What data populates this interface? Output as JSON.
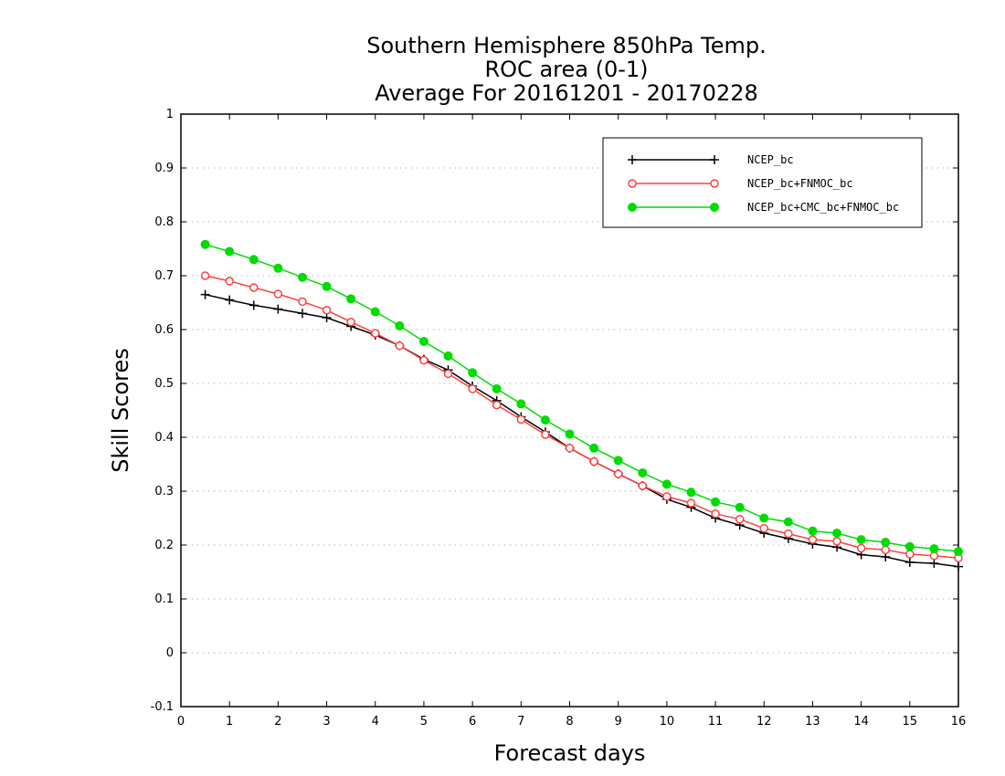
{
  "chart_data": {
    "type": "line",
    "title_lines": [
      "Southern Hemisphere 850hPa Temp.",
      "ROC area (0-1)",
      "Average For 20161201 - 20170228"
    ],
    "xlabel": "Forecast days",
    "ylabel": "Skill Scores",
    "xlim": [
      0,
      16
    ],
    "ylim": [
      -0.1,
      1
    ],
    "xticks": [
      0,
      1,
      2,
      3,
      4,
      5,
      6,
      7,
      8,
      9,
      10,
      11,
      12,
      13,
      14,
      15,
      16
    ],
    "yticks": [
      -0.1,
      0,
      0.1,
      0.2,
      0.3,
      0.4,
      0.5,
      0.6,
      0.7,
      0.8,
      0.9,
      1
    ],
    "ytick_labels": [
      "-0.1",
      "0",
      "0.1",
      "0.2",
      "0.3",
      "0.4",
      "0.5",
      "0.6",
      "0.7",
      "0.8",
      "0.9",
      "1"
    ],
    "grid": "horizontal-dotted",
    "legend_position": "top-right",
    "x": [
      0.5,
      1,
      1.5,
      2,
      2.5,
      3,
      3.5,
      4,
      4.5,
      5,
      5.5,
      6,
      6.5,
      7,
      7.5,
      8,
      8.5,
      9,
      9.5,
      10,
      10.5,
      11,
      11.5,
      12,
      12.5,
      13,
      13.5,
      14,
      14.5,
      15,
      15.5,
      16
    ],
    "series": [
      {
        "name": "NCEP_bc",
        "color": "#000000",
        "marker": "plus",
        "values": [
          0.665,
          0.655,
          0.645,
          0.638,
          0.63,
          0.622,
          0.606,
          0.59,
          0.57,
          0.545,
          0.525,
          0.495,
          0.468,
          0.438,
          0.41,
          0.38,
          0.355,
          0.332,
          0.31,
          0.285,
          0.27,
          0.25,
          0.237,
          0.222,
          0.212,
          0.202,
          0.196,
          0.182,
          0.178,
          0.168,
          0.166,
          0.16
        ]
      },
      {
        "name": "NCEP_bc+FNMOC_bc",
        "color": "#ff4040",
        "marker": "open-circle",
        "values": [
          0.7,
          0.69,
          0.678,
          0.666,
          0.652,
          0.636,
          0.614,
          0.593,
          0.57,
          0.543,
          0.518,
          0.49,
          0.46,
          0.433,
          0.405,
          0.38,
          0.355,
          0.332,
          0.31,
          0.29,
          0.278,
          0.258,
          0.248,
          0.231,
          0.221,
          0.21,
          0.207,
          0.194,
          0.191,
          0.183,
          0.18,
          0.176
        ]
      },
      {
        "name": "NCEP_bc+CMC_bc+FNMOC_bc",
        "color": "#00dc00",
        "marker": "filled-circle",
        "values": [
          0.758,
          0.745,
          0.73,
          0.714,
          0.697,
          0.68,
          0.657,
          0.633,
          0.607,
          0.578,
          0.551,
          0.52,
          0.49,
          0.462,
          0.432,
          0.406,
          0.38,
          0.357,
          0.334,
          0.313,
          0.298,
          0.28,
          0.27,
          0.25,
          0.243,
          0.226,
          0.222,
          0.21,
          0.205,
          0.197,
          0.193,
          0.188
        ]
      }
    ]
  }
}
